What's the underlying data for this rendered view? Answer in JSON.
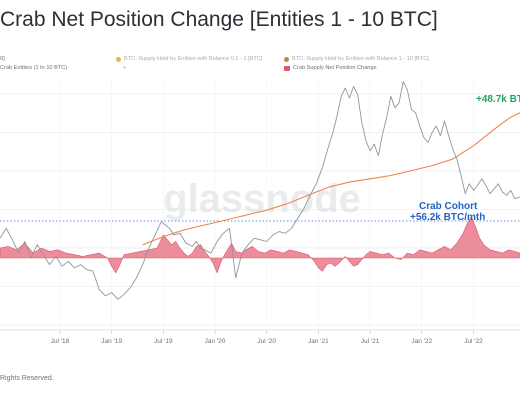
{
  "title": "Crab Net Position Change [Entities 1 - 10 BTC]",
  "legend": {
    "left_top": "0]",
    "left_bottom": "Crab Entities (1 to 10 BTC)",
    "series_a": "BTC: Supply Held by Entities with Balance 0.1 - 1 [BTC]",
    "series_b": "BTC: Supply Held by Entities with Balance 1 - 10 [BTC]",
    "net_label": "Crab Supply Net Position Change",
    "faded_mark": "+"
  },
  "watermark": "glassnode",
  "annotations": {
    "top_right": "+48.7k BT",
    "crab_line1": "Crab Cohort",
    "crab_line2": "+56.2k BTC/mth"
  },
  "footer": "Rights Reserved.",
  "colors": {
    "price": "#8e979f",
    "moving_average": "#f0834a",
    "net_position": "#e0566b",
    "net_position_fill": "#e8798a",
    "green_annotation": "#22a65a",
    "blue_annotation": "#2563c9",
    "zero_line": "#2f6fd6",
    "legend_dot_a": "#e8b04a",
    "legend_dot_b": "#b58a4a"
  },
  "chart_data": {
    "type": "line",
    "title": "Crab Net Position Change [Entities 1 - 10 BTC]",
    "x_ticks": [
      "Jul '18",
      "Jan '19",
      "Jul '19",
      "Jan '20",
      "Jul '20",
      "Jan '21",
      "Jul '21",
      "Jan '22",
      "Jul '22"
    ],
    "x_start": 2017.92,
    "x_end": 2022.95,
    "grid": true,
    "legend_position": "top-left",
    "series": [
      {
        "name": "Crab Supply Net Position Change",
        "role": "net_position",
        "points": [
          [
            2017.92,
            0.6
          ],
          [
            2018.0,
            0.7
          ],
          [
            2018.08,
            0.5
          ],
          [
            2018.16,
            0.9
          ],
          [
            2018.24,
            0.3
          ],
          [
            2018.32,
            0.6
          ],
          [
            2018.4,
            0.4
          ],
          [
            2018.48,
            0.5
          ],
          [
            2018.56,
            0.3
          ],
          [
            2018.64,
            0.2
          ],
          [
            2018.72,
            0.1
          ],
          [
            2018.8,
            0.2
          ],
          [
            2018.88,
            0.3
          ],
          [
            2018.96,
            0.0
          ],
          [
            2019.0,
            -0.5
          ],
          [
            2019.04,
            -0.9
          ],
          [
            2019.08,
            -0.4
          ],
          [
            2019.12,
            0.2
          ],
          [
            2019.2,
            0.3
          ],
          [
            2019.28,
            0.4
          ],
          [
            2019.36,
            0.5
          ],
          [
            2019.44,
            0.6
          ],
          [
            2019.5,
            1.4
          ],
          [
            2019.54,
            1.1
          ],
          [
            2019.58,
            0.8
          ],
          [
            2019.62,
            1.0
          ],
          [
            2019.66,
            0.6
          ],
          [
            2019.7,
            0.3
          ],
          [
            2019.74,
            0.1
          ],
          [
            2019.78,
            0.3
          ],
          [
            2019.82,
            0.7
          ],
          [
            2019.86,
            0.8
          ],
          [
            2019.9,
            0.4
          ],
          [
            2019.94,
            0.1
          ],
          [
            2019.98,
            -0.3
          ],
          [
            2020.02,
            -0.9
          ],
          [
            2020.06,
            -0.2
          ],
          [
            2020.1,
            0.3
          ],
          [
            2020.16,
            0.9
          ],
          [
            2020.2,
            0.4
          ],
          [
            2020.26,
            0.3
          ],
          [
            2020.3,
            0.5
          ],
          [
            2020.36,
            0.7
          ],
          [
            2020.42,
            0.4
          ],
          [
            2020.48,
            0.3
          ],
          [
            2020.54,
            0.5
          ],
          [
            2020.6,
            0.4
          ],
          [
            2020.66,
            0.3
          ],
          [
            2020.72,
            0.5
          ],
          [
            2020.78,
            0.4
          ],
          [
            2020.84,
            0.3
          ],
          [
            2020.9,
            0.2
          ],
          [
            2020.96,
            -0.2
          ],
          [
            2021.0,
            -0.6
          ],
          [
            2021.04,
            -0.8
          ],
          [
            2021.08,
            -0.4
          ],
          [
            2021.12,
            -0.3
          ],
          [
            2021.16,
            -0.5
          ],
          [
            2021.2,
            -0.3
          ],
          [
            2021.26,
            0.1
          ],
          [
            2021.3,
            -0.2
          ],
          [
            2021.34,
            -0.5
          ],
          [
            2021.38,
            -0.4
          ],
          [
            2021.42,
            -0.1
          ],
          [
            2021.46,
            0.2
          ],
          [
            2021.5,
            0.4
          ],
          [
            2021.56,
            0.3
          ],
          [
            2021.62,
            0.2
          ],
          [
            2021.68,
            0.3
          ],
          [
            2021.74,
            0.0
          ],
          [
            2021.8,
            -0.1
          ],
          [
            2021.86,
            0.3
          ],
          [
            2021.92,
            0.2
          ],
          [
            2021.98,
            0.5
          ],
          [
            2022.04,
            0.4
          ],
          [
            2022.1,
            0.3
          ],
          [
            2022.16,
            0.5
          ],
          [
            2022.22,
            0.7
          ],
          [
            2022.28,
            0.5
          ],
          [
            2022.34,
            0.9
          ],
          [
            2022.4,
            1.5
          ],
          [
            2022.44,
            2.1
          ],
          [
            2022.48,
            2.5
          ],
          [
            2022.52,
            1.9
          ],
          [
            2022.56,
            1.2
          ],
          [
            2022.6,
            0.8
          ],
          [
            2022.66,
            0.5
          ],
          [
            2022.72,
            0.4
          ],
          [
            2022.78,
            0.3
          ],
          [
            2022.84,
            0.5
          ],
          [
            2022.9,
            0.4
          ],
          [
            2022.95,
            0.3
          ]
        ]
      },
      {
        "name": "BTC: Supply Held by Entities with Balance 1 - 10 [BTC]",
        "role": "moving_average",
        "points": [
          [
            2019.3,
            0.8
          ],
          [
            2019.5,
            1.3
          ],
          [
            2019.7,
            1.7
          ],
          [
            2019.9,
            2.0
          ],
          [
            2020.1,
            2.3
          ],
          [
            2020.3,
            2.6
          ],
          [
            2020.5,
            2.9
          ],
          [
            2020.7,
            3.3
          ],
          [
            2020.9,
            3.8
          ],
          [
            2021.1,
            4.3
          ],
          [
            2021.3,
            4.6
          ],
          [
            2021.5,
            4.8
          ],
          [
            2021.7,
            5.0
          ],
          [
            2021.9,
            5.3
          ],
          [
            2022.1,
            5.6
          ],
          [
            2022.3,
            6.0
          ],
          [
            2022.5,
            6.8
          ],
          [
            2022.7,
            7.8
          ],
          [
            2022.85,
            8.5
          ],
          [
            2022.95,
            8.8
          ]
        ]
      },
      {
        "name": "BTC Price",
        "role": "price",
        "points": [
          [
            2017.92,
            1.2
          ],
          [
            2017.98,
            1.8
          ],
          [
            2018.04,
            1.1
          ],
          [
            2018.1,
            0.3
          ],
          [
            2018.16,
            1.0
          ],
          [
            2018.22,
            0.0
          ],
          [
            2018.28,
            0.8
          ],
          [
            2018.34,
            0.2
          ],
          [
            2018.4,
            -0.4
          ],
          [
            2018.46,
            0.1
          ],
          [
            2018.52,
            -0.5
          ],
          [
            2018.58,
            -0.2
          ],
          [
            2018.64,
            -0.6
          ],
          [
            2018.7,
            -0.4
          ],
          [
            2018.76,
            -0.7
          ],
          [
            2018.82,
            -0.8
          ],
          [
            2018.88,
            -1.9
          ],
          [
            2018.94,
            -2.3
          ],
          [
            2019.0,
            -2.1
          ],
          [
            2019.06,
            -2.5
          ],
          [
            2019.12,
            -2.2
          ],
          [
            2019.18,
            -1.8
          ],
          [
            2019.24,
            -1.2
          ],
          [
            2019.3,
            -0.4
          ],
          [
            2019.36,
            0.6
          ],
          [
            2019.42,
            1.4
          ],
          [
            2019.48,
            2.2
          ],
          [
            2019.52,
            2.0
          ],
          [
            2019.56,
            1.8
          ],
          [
            2019.6,
            1.4
          ],
          [
            2019.66,
            1.5
          ],
          [
            2019.72,
            0.9
          ],
          [
            2019.78,
            0.7
          ],
          [
            2019.82,
            1.0
          ],
          [
            2019.86,
            0.6
          ],
          [
            2019.9,
            0.5
          ],
          [
            2019.96,
            0.3
          ],
          [
            2020.02,
            1.0
          ],
          [
            2020.08,
            1.5
          ],
          [
            2020.14,
            1.8
          ],
          [
            2020.2,
            -1.2
          ],
          [
            2020.26,
            0.3
          ],
          [
            2020.32,
            0.8
          ],
          [
            2020.38,
            1.2
          ],
          [
            2020.44,
            1.1
          ],
          [
            2020.5,
            1.0
          ],
          [
            2020.56,
            1.4
          ],
          [
            2020.62,
            1.6
          ],
          [
            2020.68,
            1.5
          ],
          [
            2020.74,
            1.8
          ],
          [
            2020.8,
            2.4
          ],
          [
            2020.86,
            3.0
          ],
          [
            2020.92,
            3.8
          ],
          [
            2020.98,
            4.5
          ],
          [
            2021.04,
            5.5
          ],
          [
            2021.1,
            6.8
          ],
          [
            2021.14,
            7.6
          ],
          [
            2021.18,
            8.6
          ],
          [
            2021.22,
            9.8
          ],
          [
            2021.26,
            10.3
          ],
          [
            2021.3,
            9.7
          ],
          [
            2021.34,
            10.4
          ],
          [
            2021.38,
            9.9
          ],
          [
            2021.42,
            8.2
          ],
          [
            2021.46,
            7.1
          ],
          [
            2021.5,
            6.5
          ],
          [
            2021.54,
            6.9
          ],
          [
            2021.58,
            6.2
          ],
          [
            2021.62,
            7.5
          ],
          [
            2021.66,
            8.5
          ],
          [
            2021.7,
            9.8
          ],
          [
            2021.74,
            9.1
          ],
          [
            2021.78,
            9.4
          ],
          [
            2021.82,
            10.7
          ],
          [
            2021.86,
            10.2
          ],
          [
            2021.9,
            9.0
          ],
          [
            2021.94,
            8.8
          ],
          [
            2021.98,
            8.0
          ],
          [
            2022.02,
            7.3
          ],
          [
            2022.06,
            7.0
          ],
          [
            2022.1,
            7.6
          ],
          [
            2022.14,
            8.0
          ],
          [
            2022.18,
            7.4
          ],
          [
            2022.22,
            8.3
          ],
          [
            2022.26,
            7.4
          ],
          [
            2022.3,
            6.6
          ],
          [
            2022.34,
            6.0
          ],
          [
            2022.38,
            5.0
          ],
          [
            2022.42,
            3.9
          ],
          [
            2022.46,
            4.5
          ],
          [
            2022.5,
            4.1
          ],
          [
            2022.54,
            4.4
          ],
          [
            2022.58,
            4.8
          ],
          [
            2022.62,
            4.4
          ],
          [
            2022.66,
            3.9
          ],
          [
            2022.7,
            4.2
          ],
          [
            2022.74,
            4.5
          ],
          [
            2022.78,
            4.0
          ],
          [
            2022.82,
            3.8
          ],
          [
            2022.86,
            4.1
          ],
          [
            2022.9,
            3.6
          ],
          [
            2022.95,
            3.7
          ]
        ]
      }
    ]
  }
}
